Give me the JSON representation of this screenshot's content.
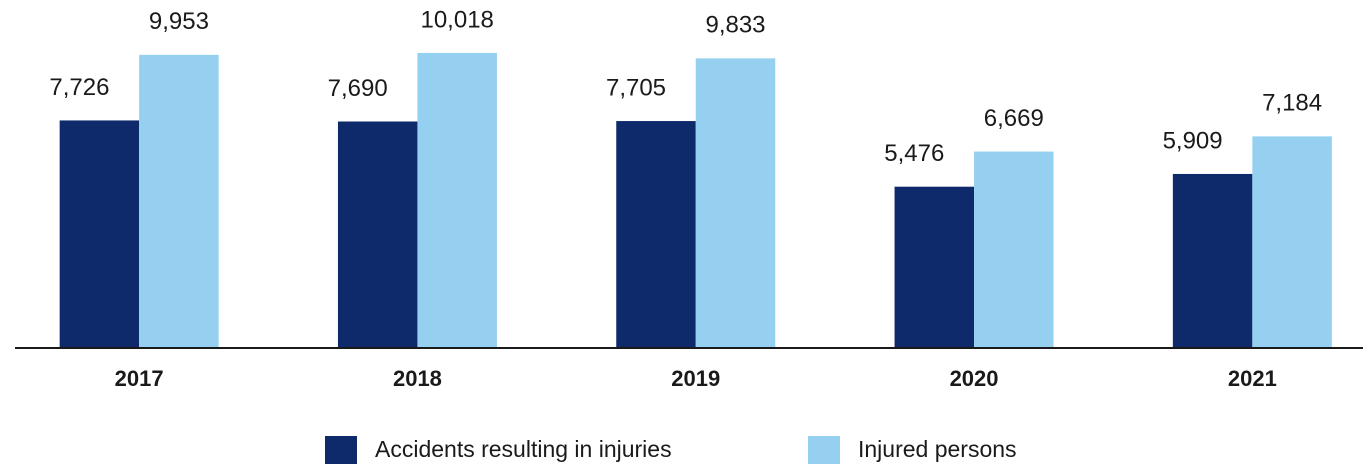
{
  "chart_data": {
    "type": "bar",
    "categories": [
      "2017",
      "2018",
      "2019",
      "2020",
      "2021"
    ],
    "series": [
      {
        "name": "Accidents resulting in injuries",
        "color": "#0f2a6b",
        "values": [
          7726,
          7690,
          7705,
          5476,
          5909
        ],
        "value_labels": [
          "7,726",
          "7,690",
          "7,705",
          "5,476",
          "5,909"
        ]
      },
      {
        "name": "Injured persons",
        "color": "#95d0f0",
        "values": [
          9953,
          10018,
          9833,
          6669,
          7184
        ],
        "value_labels": [
          "9,953",
          "10,018",
          "9,833",
          "6,669",
          "7,184"
        ]
      }
    ],
    "ylim": [
      0,
      11000
    ],
    "grid": false,
    "legend": "bottom"
  }
}
